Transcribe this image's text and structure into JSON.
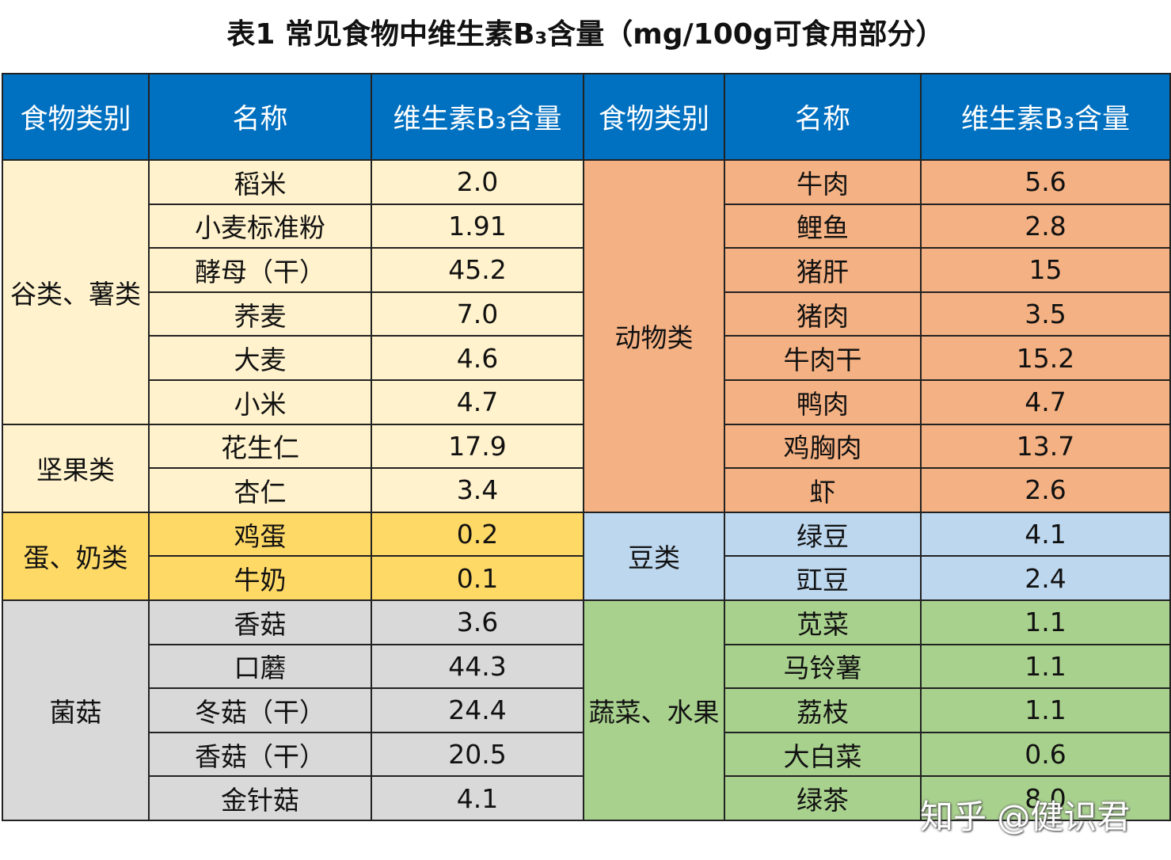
{
  "title": "表1 常见食物中维生素B₃含量（mg/100g可食用部分）",
  "headers": [
    "食物类别",
    "名称",
    "维生素B₃含量",
    "食物类别",
    "名称",
    "维生素B₃含量"
  ],
  "left": [
    {
      "category": "谷类、薯类",
      "items": [
        {
          "name": "稻米",
          "value": "2.0"
        },
        {
          "name": "小麦标准粉",
          "value": "1.91"
        },
        {
          "name": "酵母（干）",
          "value": "45.2"
        },
        {
          "name": "荞麦",
          "value": "7.0"
        },
        {
          "name": "大麦",
          "value": "4.6"
        },
        {
          "name": "小米",
          "value": "4.7"
        }
      ]
    },
    {
      "category": "坚果类",
      "items": [
        {
          "name": "花生仁",
          "value": "17.9"
        },
        {
          "name": "杏仁",
          "value": "3.4"
        }
      ]
    },
    {
      "category": "蛋、奶类",
      "items": [
        {
          "name": "鸡蛋",
          "value": "0.2"
        },
        {
          "name": "牛奶",
          "value": "0.1"
        }
      ]
    },
    {
      "category": "菌菇",
      "items": [
        {
          "name": "香菇",
          "value": "3.6"
        },
        {
          "name": "口蘑",
          "value": "44.3"
        },
        {
          "name": "冬菇（干）",
          "value": "24.4"
        },
        {
          "name": "香菇（干）",
          "value": "20.5"
        },
        {
          "name": "金针菇",
          "value": "4.1"
        }
      ]
    }
  ],
  "right": [
    {
      "category": "动物类",
      "items": [
        {
          "name": "牛肉",
          "value": "5.6"
        },
        {
          "name": "鲤鱼",
          "value": "2.8"
        },
        {
          "name": "猪肝",
          "value": "15"
        },
        {
          "name": "猪肉",
          "value": "3.5"
        },
        {
          "name": "牛肉干",
          "value": "15.2"
        },
        {
          "name": "鸭肉",
          "value": "4.7"
        },
        {
          "name": "鸡胸肉",
          "value": "13.7"
        },
        {
          "name": "虾",
          "value": "2.6"
        }
      ]
    },
    {
      "category": "豆类",
      "items": [
        {
          "name": "绿豆",
          "value": "4.1"
        },
        {
          "name": "豇豆",
          "value": "2.4"
        }
      ]
    },
    {
      "category": "蔬菜、水果",
      "items": [
        {
          "name": "苋菜",
          "value": "1.1"
        },
        {
          "name": "马铃薯",
          "value": "1.1"
        },
        {
          "name": "荔枝",
          "value": "1.1"
        },
        {
          "name": "大白菜",
          "value": "0.6"
        },
        {
          "name": "绿茶",
          "value": "8.0"
        }
      ]
    }
  ],
  "watermark": "知乎 @健识君"
}
